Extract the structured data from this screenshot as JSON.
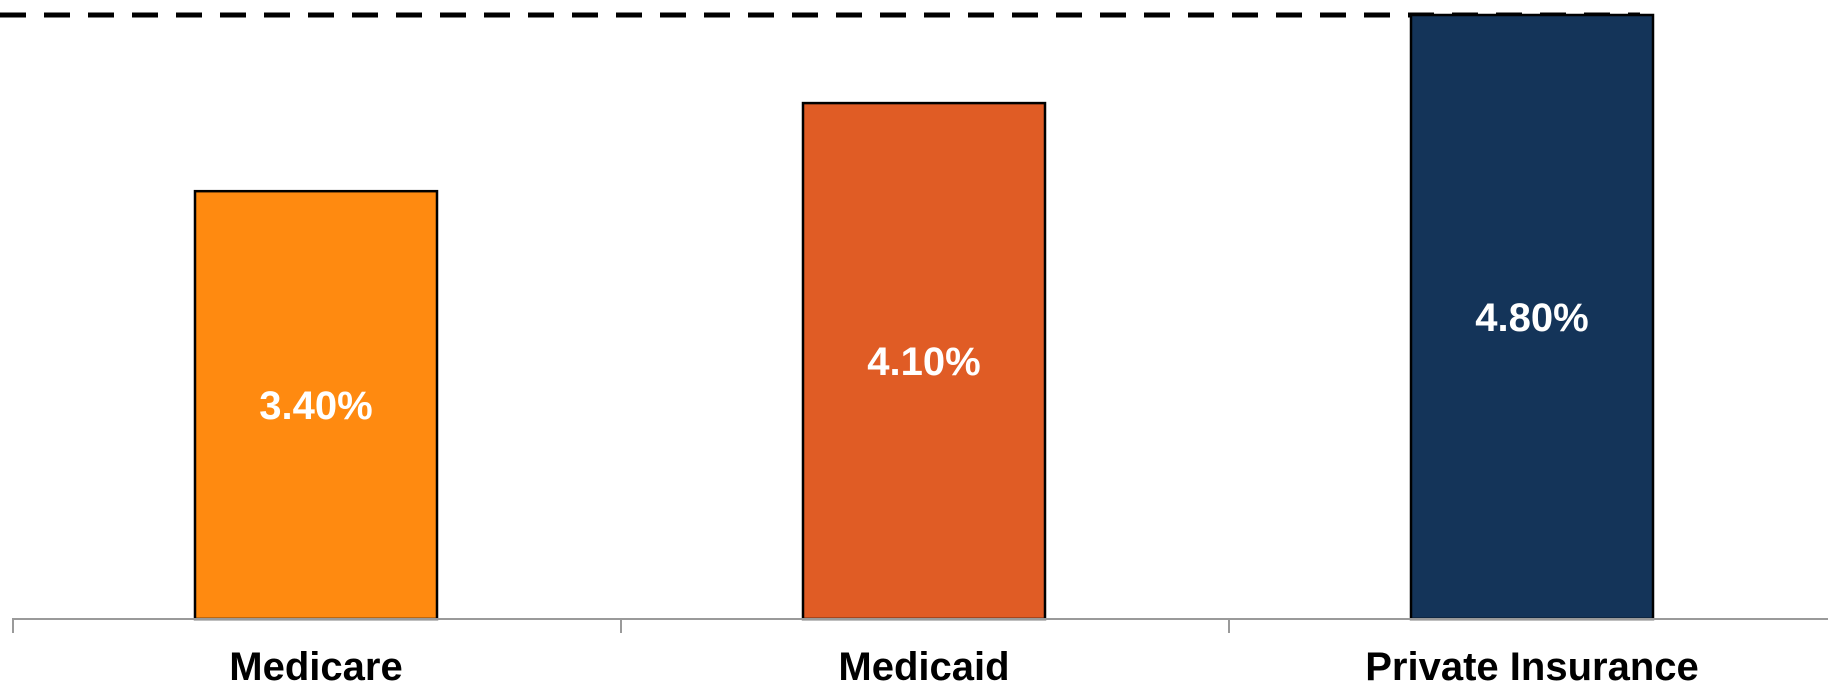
{
  "chart_data": {
    "type": "bar",
    "categories": [
      "Medicare",
      "Medicaid",
      "Private Insurance"
    ],
    "values": [
      3.4,
      4.1,
      4.8
    ],
    "data_labels": [
      "3.40%",
      "4.10%",
      "4.80%"
    ],
    "colors": [
      "#FF8A10",
      "#E05C25",
      "#143459"
    ],
    "ylim": [
      0,
      4.8
    ],
    "reference_line": {
      "value": 4.8,
      "style": "dashed",
      "color": "#000000"
    },
    "title": "",
    "xlabel": "",
    "ylabel": "",
    "grid": false,
    "legend": "none"
  }
}
